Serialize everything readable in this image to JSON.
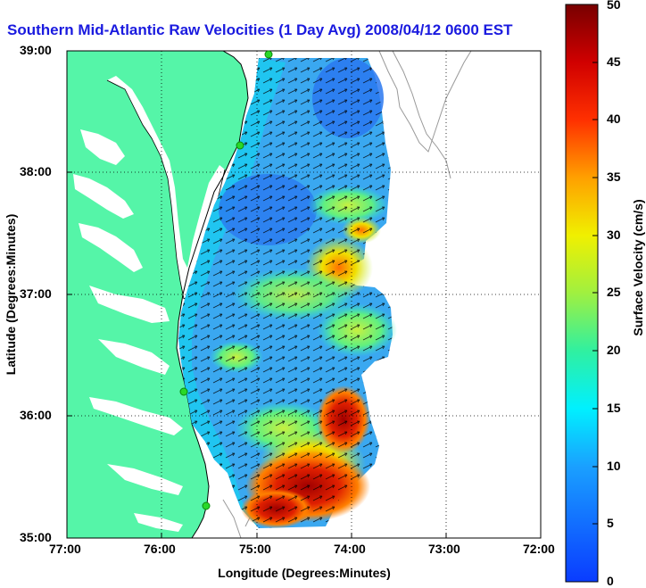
{
  "title": "Southern Mid-Atlantic Raw Velocities (1 Day Avg) 2008/04/12 0600 EST",
  "x_axis": {
    "label": "Longitude (Degrees:Minutes)",
    "ticks": [
      "77:00",
      "76:00",
      "75:00",
      "74:00",
      "73:00",
      "72:00"
    ]
  },
  "y_axis": {
    "label": "Latitude (Degrees:Minutes)",
    "ticks": [
      "39:00",
      "38:00",
      "37:00",
      "36:00",
      "35:00"
    ]
  },
  "colorbar": {
    "label": "Surface Velocity (cm/s)",
    "ticks": [
      "0",
      "5",
      "10",
      "15",
      "20",
      "25",
      "30",
      "35",
      "40",
      "45",
      "50"
    ],
    "min": 0,
    "max": 50
  },
  "colors": {
    "land": "#55f5a8",
    "title": "#1a1adf",
    "station": "#29d829",
    "bathymetry": "#999999"
  },
  "stations": [
    "station-1",
    "station-2",
    "station-3",
    "station-4"
  ]
}
